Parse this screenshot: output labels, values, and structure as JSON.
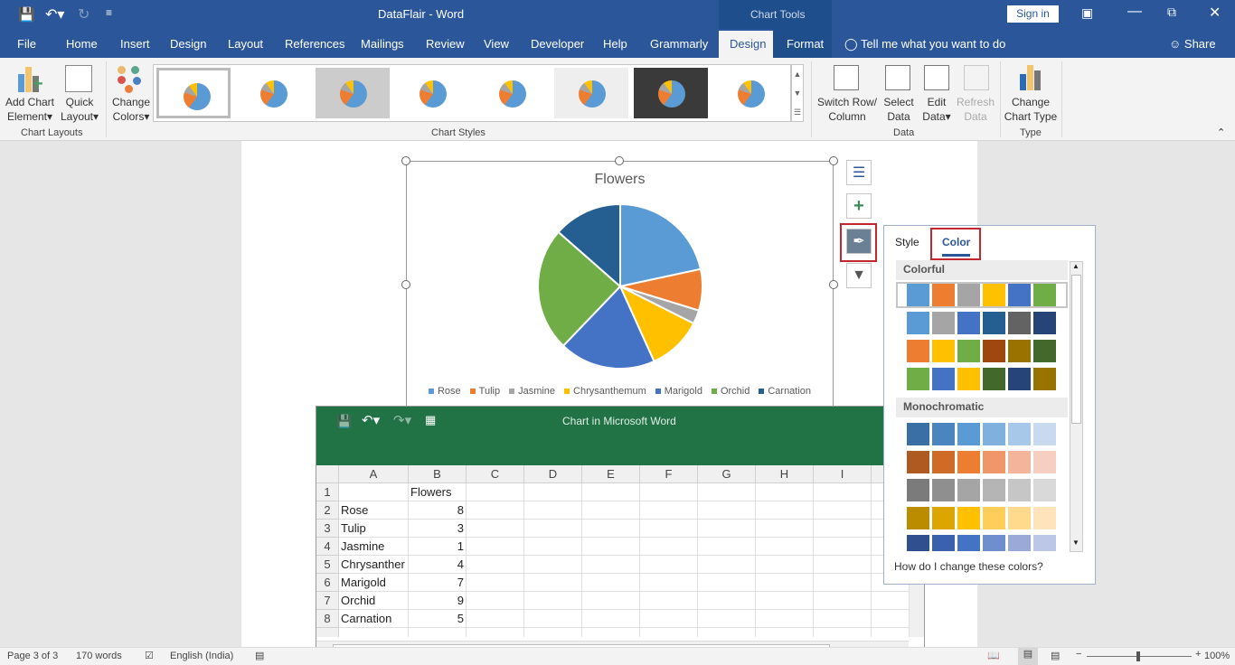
{
  "window": {
    "title": "DataFlair  -  Word",
    "context_tab": "Chart Tools",
    "sign_in": "Sign in"
  },
  "tabs": [
    "File",
    "Home",
    "Insert",
    "Design",
    "Layout",
    "References",
    "Mailings",
    "Review",
    "View",
    "Developer",
    "Help",
    "Grammarly",
    "Design",
    "Format"
  ],
  "active_tab": "Design",
  "tell_me": "Tell me what you want to do",
  "share": "Share",
  "ribbon": {
    "add_chart_element": [
      "Add Chart",
      "Element"
    ],
    "quick_layout": [
      "Quick",
      "Layout"
    ],
    "change_colors": [
      "Change",
      "Colors"
    ],
    "switch_row_column": [
      "Switch Row/",
      "Column"
    ],
    "select_data": [
      "Select",
      "Data"
    ],
    "edit_data": [
      "Edit",
      "Data"
    ],
    "refresh_data": [
      "Refresh",
      "Data"
    ],
    "change_chart_type": [
      "Change",
      "Chart Type"
    ],
    "groups": {
      "chart_layouts": "Chart Layouts",
      "chart_styles": "Chart Styles",
      "data": "Data",
      "type": "Type"
    }
  },
  "chart_data": {
    "type": "pie",
    "title": "Flowers",
    "categories": [
      "Rose",
      "Tulip",
      "Jasmine",
      "Chrysanthemum",
      "Marigold",
      "Orchid",
      "Carnation"
    ],
    "values": [
      8,
      3,
      1,
      4,
      7,
      9,
      5
    ],
    "colors": [
      "#5b9bd5",
      "#ed7d31",
      "#a5a5a5",
      "#ffc000",
      "#4472c4",
      "#70ad47",
      "#255e91"
    ],
    "legend": "bottom"
  },
  "excel": {
    "title": "Chart in Microsoft Word",
    "columns": [
      "A",
      "B",
      "C",
      "D",
      "E",
      "F",
      "G",
      "H",
      "I"
    ],
    "rows": [
      [
        "",
        "Flowers"
      ],
      [
        "Rose",
        "8"
      ],
      [
        "Tulip",
        "3"
      ],
      [
        "Jasmine",
        "1"
      ],
      [
        "Chrysanther",
        "4"
      ],
      [
        "Marigold",
        "7"
      ],
      [
        "Orchid",
        "9"
      ],
      [
        "Carnation",
        "5"
      ]
    ]
  },
  "color_panel": {
    "tabs": [
      "Style",
      "Color"
    ],
    "active": "Color",
    "colorful_label": "Colorful",
    "colorful": [
      [
        "#5b9bd5",
        "#ed7d31",
        "#a5a5a5",
        "#ffc000",
        "#4472c4",
        "#70ad47"
      ],
      [
        "#5b9bd5",
        "#a5a5a5",
        "#4472c4",
        "#255e91",
        "#636363",
        "#264478"
      ],
      [
        "#ed7d31",
        "#ffc000",
        "#70ad47",
        "#9e480e",
        "#997300",
        "#43682b"
      ],
      [
        "#70ad47",
        "#4472c4",
        "#ffc000",
        "#43682b",
        "#264478",
        "#997300"
      ]
    ],
    "mono_label": "Monochromatic",
    "mono": [
      [
        "#3a6fa5",
        "#4a85c0",
        "#5b9bd5",
        "#7fb0de",
        "#a8c8ea",
        "#c9daf0"
      ],
      [
        "#ae5a21",
        "#cf6a27",
        "#ed7d31",
        "#f0976a",
        "#f4b39b",
        "#f7cfc1"
      ],
      [
        "#7b7b7b",
        "#8f8f8f",
        "#a5a5a5",
        "#b5b5b5",
        "#c6c6c6",
        "#d9d9d9"
      ],
      [
        "#bc8c00",
        "#dca500",
        "#ffc000",
        "#ffcd5a",
        "#ffd98c",
        "#ffe4bb"
      ],
      [
        "#2f4f8f",
        "#3961ae",
        "#4472c4",
        "#6e8ece",
        "#9ba9d9",
        "#bcc7e7"
      ]
    ],
    "help_link": "How do I change these colors?"
  },
  "status": {
    "page": "Page 3 of 3",
    "words": "170 words",
    "language": "English (India)",
    "zoom": "100%"
  }
}
